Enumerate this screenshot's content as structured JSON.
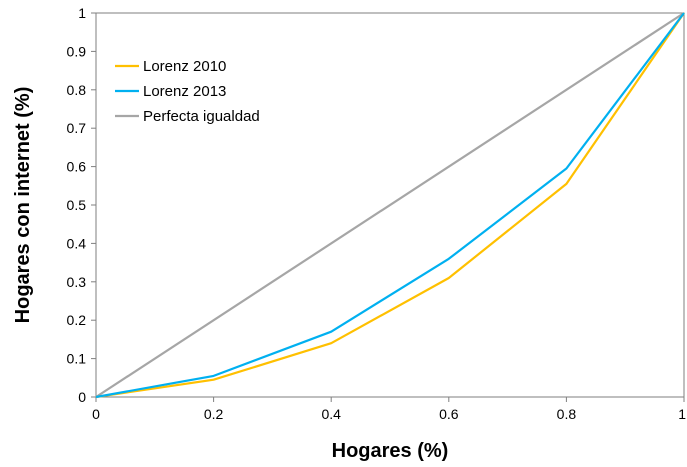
{
  "chart_data": {
    "type": "line",
    "xlabel": "Hogares (%)",
    "ylabel": "Hogares con internet (%)",
    "xlim": [
      0,
      1
    ],
    "ylim": [
      0,
      1
    ],
    "x_ticks": [
      "0",
      "0.2",
      "0.4",
      "0.6",
      "0.8",
      "1"
    ],
    "y_ticks": [
      "0",
      "0.1",
      "0.2",
      "0.3",
      "0.4",
      "0.5",
      "0.6",
      "0.7",
      "0.8",
      "0.9",
      "1"
    ],
    "grid": false,
    "legend_position": "top-left",
    "series": [
      {
        "name": "Lorenz 2010",
        "color": "#FFC000",
        "x": [
          0,
          0.2,
          0.4,
          0.6,
          0.8,
          1
        ],
        "y": [
          0,
          0.045,
          0.14,
          0.31,
          0.555,
          1
        ]
      },
      {
        "name": "Lorenz 2013",
        "color": "#00B0F0",
        "x": [
          0,
          0.2,
          0.4,
          0.6,
          0.8,
          1
        ],
        "y": [
          0,
          0.055,
          0.17,
          0.36,
          0.595,
          1
        ]
      },
      {
        "name": "Perfecta igualdad",
        "color": "#A6A6A6",
        "x": [
          0,
          1
        ],
        "y": [
          0,
          1
        ]
      }
    ]
  }
}
